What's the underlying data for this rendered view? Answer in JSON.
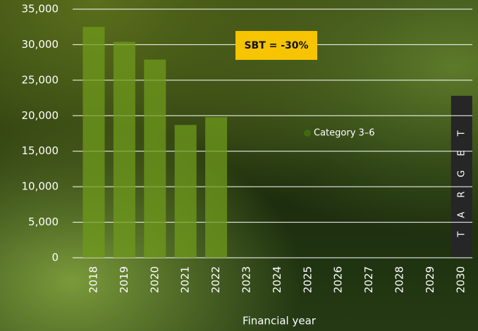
{
  "chart_data": {
    "type": "bar",
    "categories": [
      "2018",
      "2019",
      "2020",
      "2021",
      "2022",
      "2023",
      "2024",
      "2025",
      "2026",
      "2027",
      "2028",
      "2029",
      "2030"
    ],
    "series": [
      {
        "name": "Category 3–6",
        "color": "#6f9a1c",
        "legend_color": "#3f6a10",
        "values": [
          32500,
          30400,
          27900,
          18700,
          19800,
          null,
          null,
          null,
          null,
          null,
          null,
          null,
          null
        ]
      }
    ],
    "target": {
      "category": "2030",
      "value": 22800,
      "label": "TARGET",
      "color": "#262626"
    },
    "annotation": "SBT = -30%",
    "x_label": "Financial year",
    "ylim": [
      0,
      35000
    ],
    "yticks": [
      0,
      {
        "value": 5000,
        "label": "5,000"
      },
      {
        "value": 10000,
        "label": "10,000"
      },
      {
        "value": 15000,
        "label": "15,000"
      },
      {
        "value": 20000,
        "label": "20,000"
      },
      {
        "value": 25000,
        "label": "25,000"
      },
      {
        "value": 30000,
        "label": "30,000"
      },
      {
        "value": 35000,
        "label": "35,000"
      }
    ],
    "grid": true
  }
}
